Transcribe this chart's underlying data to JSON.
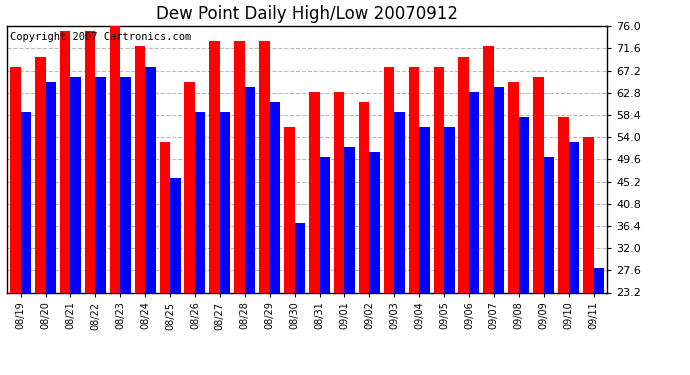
{
  "title": "Dew Point Daily High/Low 20070912",
  "copyright": "Copyright 2007 Cartronics.com",
  "dates": [
    "08/19",
    "08/20",
    "08/21",
    "08/22",
    "08/23",
    "08/24",
    "08/25",
    "08/26",
    "08/27",
    "08/28",
    "08/29",
    "08/30",
    "08/31",
    "09/01",
    "09/02",
    "09/03",
    "09/04",
    "09/05",
    "09/06",
    "09/07",
    "09/08",
    "09/09",
    "09/10",
    "09/11"
  ],
  "highs": [
    68,
    70,
    75,
    75,
    76,
    72,
    53,
    65,
    73,
    73,
    73,
    56,
    63,
    63,
    61,
    68,
    68,
    68,
    70,
    72,
    65,
    66,
    58,
    54
  ],
  "lows": [
    59,
    65,
    66,
    66,
    66,
    68,
    46,
    59,
    59,
    64,
    61,
    37,
    50,
    52,
    51,
    59,
    56,
    56,
    63,
    64,
    58,
    50,
    53,
    28
  ],
  "high_color": "#ff0000",
  "low_color": "#0000ff",
  "background_color": "#ffffff",
  "grid_color": "#bbbbbb",
  "title_fontsize": 12,
  "copyright_fontsize": 7.5,
  "ymin": 23.2,
  "ymax": 76.0,
  "yticks": [
    23.2,
    27.6,
    32.0,
    36.4,
    40.8,
    45.2,
    49.6,
    54.0,
    58.4,
    62.8,
    67.2,
    71.6,
    76.0
  ]
}
